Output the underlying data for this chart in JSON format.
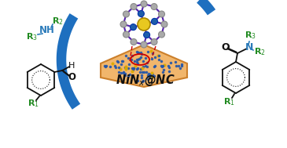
{
  "bg_color": "#ffffff",
  "green_color": "#228B22",
  "blue_color": "#2B7BBA",
  "black_color": "#111111",
  "arrow_color": "#1E6FBF",
  "red_color": "#cc0000",
  "yellow_color": "#E8C820",
  "gray_atom": "#aaaaaa",
  "purple_bond": "#6633aa",
  "slab_color": "#f0b060",
  "slab_edge": "#c87820",
  "slab_dot_blue": "#2255aa",
  "slab_dot_yellow": "#ddaa00",
  "ni_blue": "#1E5DAA",
  "catalyst_label": "NiN",
  "catalyst_sub": "x",
  "catalyst_at": "@NC",
  "figsize": [
    3.65,
    1.89
  ],
  "dpi": 100
}
